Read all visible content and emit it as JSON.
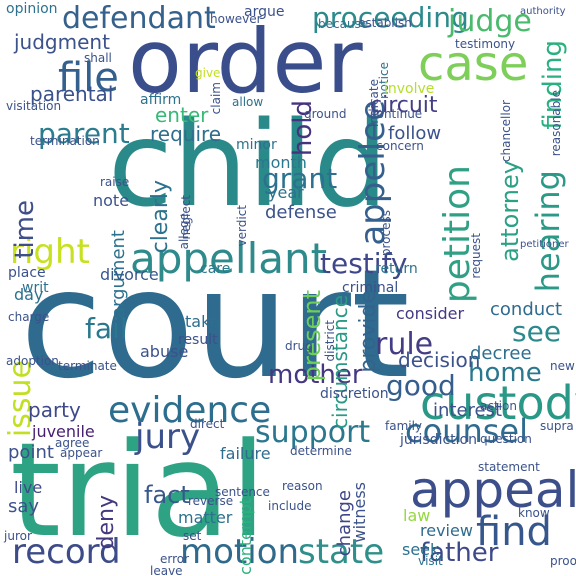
{
  "words": [
    {
      "text": "court",
      "color": "#2f6b8e",
      "orientation": "horizontal"
    },
    {
      "text": "child",
      "color": "#2a8a8a",
      "orientation": "horizontal"
    },
    {
      "text": "trial",
      "color": "#2ea384",
      "orientation": "horizontal"
    },
    {
      "text": "order",
      "color": "#3a4e8c",
      "orientation": "horizontal"
    },
    {
      "text": "appellant",
      "color": "#2f8a8c",
      "orientation": "horizontal"
    },
    {
      "text": "custody",
      "color": "#2a9886",
      "orientation": "horizontal"
    },
    {
      "text": "appeal",
      "color": "#3c4f8a",
      "orientation": "horizontal"
    },
    {
      "text": "evidence",
      "color": "#2d6e8e",
      "orientation": "horizontal"
    },
    {
      "text": "case",
      "color": "#7ecf5a",
      "orientation": "horizontal"
    },
    {
      "text": "motion",
      "color": "#2f6a8d",
      "orientation": "horizontal"
    },
    {
      "text": "state",
      "color": "#2f8f8b",
      "orientation": "horizontal"
    },
    {
      "text": "record",
      "color": "#3d4c88",
      "orientation": "horizontal"
    },
    {
      "text": "petition",
      "color": "#2fa084",
      "orientation": "vertical"
    },
    {
      "text": "file",
      "color": "#33608d",
      "orientation": "horizontal"
    },
    {
      "text": "right",
      "color": "#c7e020",
      "orientation": "horizontal"
    },
    {
      "text": "defendant",
      "color": "#35618d",
      "orientation": "horizontal"
    },
    {
      "text": "proceeding",
      "color": "#2c8a8c",
      "orientation": "horizontal"
    },
    {
      "text": "judge",
      "color": "#4aba6d",
      "orientation": "horizontal"
    },
    {
      "text": "attorney",
      "color": "#2ba085",
      "orientation": "vertical"
    },
    {
      "text": "hearing",
      "color": "#2a9988",
      "orientation": "vertical"
    },
    {
      "text": "testify",
      "color": "#3f478a",
      "orientation": "horizontal"
    },
    {
      "text": "appellee",
      "color": "#355f8d",
      "orientation": "vertical"
    },
    {
      "text": "counsel",
      "color": "#2e6b8e",
      "orientation": "horizontal"
    },
    {
      "text": "find",
      "color": "#36578c",
      "orientation": "horizontal"
    },
    {
      "text": "jury",
      "color": "#3b518b",
      "orientation": "horizontal"
    },
    {
      "text": "support",
      "color": "#2b778e",
      "orientation": "horizontal"
    },
    {
      "text": "mother",
      "color": "#453882",
      "orientation": "horizontal"
    },
    {
      "text": "father",
      "color": "#3e4989",
      "orientation": "horizontal"
    },
    {
      "text": "rule",
      "color": "#433d85",
      "orientation": "horizontal"
    },
    {
      "text": "good",
      "color": "#355e8d",
      "orientation": "horizontal"
    },
    {
      "text": "home",
      "color": "#2a788e",
      "orientation": "horizontal"
    },
    {
      "text": "see",
      "color": "#2c8a8c",
      "orientation": "horizontal"
    },
    {
      "text": "parent",
      "color": "#2b7c8e",
      "orientation": "horizontal"
    },
    {
      "text": "issue",
      "color": "#c2df23",
      "orientation": "vertical"
    },
    {
      "text": "time",
      "color": "#3d4e8a",
      "orientation": "vertical"
    },
    {
      "text": "circuit",
      "color": "#433e85",
      "orientation": "horizontal"
    },
    {
      "text": "judgment",
      "color": "#3b528b",
      "orientation": "horizontal"
    },
    {
      "text": "parental",
      "color": "#3b518b",
      "orientation": "horizontal"
    },
    {
      "text": "fact",
      "color": "#38588c",
      "orientation": "horizontal"
    },
    {
      "text": "fail",
      "color": "#2a788e",
      "orientation": "horizontal"
    },
    {
      "text": "hold",
      "color": "#46327e",
      "orientation": "vertical"
    },
    {
      "text": "grant",
      "color": "#2c718e",
      "orientation": "horizontal"
    },
    {
      "text": "provide",
      "color": "#33638d",
      "orientation": "vertical"
    },
    {
      "text": "party",
      "color": "#3e4989",
      "orientation": "horizontal"
    },
    {
      "text": "review",
      "color": "#2f6b8e",
      "orientation": "horizontal"
    },
    {
      "text": "finding",
      "color": "#2ab07f",
      "orientation": "vertical"
    },
    {
      "text": "decision",
      "color": "#3b528b",
      "orientation": "horizontal"
    },
    {
      "text": "present",
      "color": "#6ece58",
      "orientation": "vertical"
    },
    {
      "text": "require",
      "color": "#2e6e8e",
      "orientation": "horizontal"
    },
    {
      "text": "follow",
      "color": "#3b528b",
      "orientation": "horizontal"
    },
    {
      "text": "circumstance",
      "color": "#2a9a86",
      "orientation": "vertical"
    },
    {
      "text": "deny",
      "color": "#453781",
      "orientation": "vertical"
    },
    {
      "text": "clearly",
      "color": "#2c728e",
      "orientation": "vertical"
    },
    {
      "text": "enter",
      "color": "#38b977",
      "orientation": "horizontal"
    },
    {
      "text": "interest",
      "color": "#3b528b",
      "orientation": "horizontal"
    },
    {
      "text": "decree",
      "color": "#2e6e8e",
      "orientation": "horizontal"
    },
    {
      "text": "conduct",
      "color": "#2f6b8e",
      "orientation": "horizontal"
    },
    {
      "text": "consider",
      "color": "#443983",
      "orientation": "horizontal"
    },
    {
      "text": "law",
      "color": "#95d840",
      "orientation": "horizontal"
    },
    {
      "text": "juvenile",
      "color": "#481f70",
      "orientation": "horizontal"
    },
    {
      "text": "argument",
      "color": "#2c728e",
      "orientation": "vertical"
    },
    {
      "text": "defense",
      "color": "#3b528b",
      "orientation": "horizontal"
    },
    {
      "text": "matter",
      "color": "#2d708e",
      "orientation": "horizontal"
    },
    {
      "text": "contempt",
      "color": "#2db27d",
      "orientation": "vertical"
    },
    {
      "text": "month",
      "color": "#2a788e",
      "orientation": "horizontal"
    },
    {
      "text": "year",
      "color": "#2c728e",
      "orientation": "horizontal"
    },
    {
      "text": "note",
      "color": "#3b528b",
      "orientation": "horizontal"
    },
    {
      "text": "abuse",
      "color": "#3b528b",
      "orientation": "horizontal"
    },
    {
      "text": "take",
      "color": "#2e6e8e",
      "orientation": "horizontal"
    },
    {
      "text": "return",
      "color": "#2c738e",
      "orientation": "horizontal"
    },
    {
      "text": "divorce",
      "color": "#38588c",
      "orientation": "horizontal"
    },
    {
      "text": "day",
      "color": "#2c728e",
      "orientation": "horizontal"
    },
    {
      "text": "say",
      "color": "#3b528b",
      "orientation": "horizontal"
    },
    {
      "text": "live",
      "color": "#3e4a89",
      "orientation": "horizontal"
    },
    {
      "text": "point",
      "color": "#3b528b",
      "orientation": "horizontal"
    },
    {
      "text": "change",
      "color": "#3f4788",
      "orientation": "vertical"
    },
    {
      "text": "witness",
      "color": "#3b528b",
      "orientation": "vertical"
    },
    {
      "text": "failure",
      "color": "#2e6d8e",
      "orientation": "horizontal"
    },
    {
      "text": "place",
      "color": "#3b528b",
      "orientation": "horizontal"
    },
    {
      "text": "care",
      "color": "#2a788e",
      "orientation": "horizontal"
    },
    {
      "text": "writ",
      "color": "#2c728e",
      "orientation": "horizontal"
    },
    {
      "text": "visit",
      "color": "#2c728e",
      "orientation": "horizontal"
    },
    {
      "text": "seek",
      "color": "#2c728e",
      "orientation": "horizontal"
    },
    {
      "text": "termination",
      "color": "#3b528b",
      "orientation": "horizontal"
    },
    {
      "text": "visitation",
      "color": "#3b528b",
      "orientation": "horizontal"
    },
    {
      "text": "give",
      "color": "#c2df23",
      "orientation": "horizontal"
    },
    {
      "text": "affirm",
      "color": "#2c728e",
      "orientation": "horizontal"
    },
    {
      "text": "minor",
      "color": "#2c728e",
      "orientation": "horizontal"
    },
    {
      "text": "shall",
      "color": "#3b528b",
      "orientation": "horizontal"
    },
    {
      "text": "argue",
      "color": "#3b528b",
      "orientation": "horizontal"
    },
    {
      "text": "allow",
      "color": "#2c728e",
      "orientation": "horizontal"
    },
    {
      "text": "ground",
      "color": "#3b528b",
      "orientation": "horizontal"
    },
    {
      "text": "notice",
      "color": "#2c728e",
      "orientation": "vertical"
    },
    {
      "text": "involve",
      "color": "#b5de2b",
      "orientation": "horizontal"
    },
    {
      "text": "continue",
      "color": "#3b528b",
      "orientation": "horizontal"
    },
    {
      "text": "concern",
      "color": "#3b528b",
      "orientation": "horizontal"
    },
    {
      "text": "testimony",
      "color": "#3b528b",
      "orientation": "horizontal"
    },
    {
      "text": "establish",
      "color": "#3b528b",
      "orientation": "horizontal"
    },
    {
      "text": "because",
      "color": "#2c728e",
      "orientation": "horizontal"
    },
    {
      "text": "however",
      "color": "#3b528b",
      "orientation": "horizontal"
    },
    {
      "text": "opinion",
      "color": "#2c728e",
      "orientation": "horizontal"
    },
    {
      "text": "indicate",
      "color": "#3b528b",
      "orientation": "vertical"
    },
    {
      "text": "claim",
      "color": "#3b528b",
      "orientation": "vertical"
    },
    {
      "text": "raise",
      "color": "#3b528b",
      "orientation": "horizontal"
    },
    {
      "text": "neglect",
      "color": "#3b528b",
      "orientation": "vertical"
    },
    {
      "text": "allege",
      "color": "#3b528b",
      "orientation": "vertical"
    },
    {
      "text": "verdict",
      "color": "#3b528b",
      "orientation": "vertical"
    },
    {
      "text": "request",
      "color": "#3b528b",
      "orientation": "vertical"
    },
    {
      "text": "criminal",
      "color": "#3b528b",
      "orientation": "horizontal"
    },
    {
      "text": "charge",
      "color": "#3b528b",
      "orientation": "horizontal"
    },
    {
      "text": "adoption",
      "color": "#3b528b",
      "orientation": "horizontal"
    },
    {
      "text": "terminate",
      "color": "#3b528b",
      "orientation": "horizontal"
    },
    {
      "text": "result",
      "color": "#3b528b",
      "orientation": "horizontal"
    },
    {
      "text": "drug",
      "color": "#3b528b",
      "orientation": "horizontal"
    },
    {
      "text": "district",
      "color": "#3b528b",
      "orientation": "vertical"
    },
    {
      "text": "discretion",
      "color": "#3b528b",
      "orientation": "horizontal"
    },
    {
      "text": "family",
      "color": "#3b528b",
      "orientation": "horizontal"
    },
    {
      "text": "action",
      "color": "#3b528b",
      "orientation": "horizontal"
    },
    {
      "text": "new",
      "color": "#3b528b",
      "orientation": "horizontal"
    },
    {
      "text": "jurisdiction",
      "color": "#3b528b",
      "orientation": "horizontal"
    },
    {
      "text": "question",
      "color": "#3b528b",
      "orientation": "horizontal"
    },
    {
      "text": "supra",
      "color": "#3b528b",
      "orientation": "horizontal"
    },
    {
      "text": "determine",
      "color": "#3b528b",
      "orientation": "horizontal"
    },
    {
      "text": "reason",
      "color": "#3b528b",
      "orientation": "horizontal"
    },
    {
      "text": "sentence",
      "color": "#3b528b",
      "orientation": "horizontal"
    },
    {
      "text": "include",
      "color": "#3b528b",
      "orientation": "horizontal"
    },
    {
      "text": "reverse",
      "color": "#3b528b",
      "orientation": "horizontal"
    },
    {
      "text": "set",
      "color": "#3b528b",
      "orientation": "horizontal"
    },
    {
      "text": "error",
      "color": "#3b528b",
      "orientation": "horizontal"
    },
    {
      "text": "leave",
      "color": "#3b528b",
      "orientation": "horizontal"
    },
    {
      "text": "juror",
      "color": "#3b528b",
      "orientation": "horizontal"
    },
    {
      "text": "agree",
      "color": "#3b528b",
      "orientation": "horizontal"
    },
    {
      "text": "appear",
      "color": "#3b528b",
      "orientation": "horizontal"
    },
    {
      "text": "direct",
      "color": "#3b528b",
      "orientation": "horizontal"
    },
    {
      "text": "know",
      "color": "#3b528b",
      "orientation": "horizontal"
    },
    {
      "text": "proof",
      "color": "#3b528b",
      "orientation": "horizontal"
    },
    {
      "text": "statement",
      "color": "#3b528b",
      "orientation": "horizontal"
    },
    {
      "text": "process",
      "color": "#3b528b",
      "orientation": "vertical"
    },
    {
      "text": "chancellor",
      "color": "#3b528b",
      "orientation": "vertical"
    },
    {
      "text": "reasonable",
      "color": "#3b528b",
      "orientation": "vertical"
    },
    {
      "text": "petitioner",
      "color": "#3b528b",
      "orientation": "horizontal"
    },
    {
      "text": "authority",
      "color": "#3b528b",
      "orientation": "horizontal"
    }
  ]
}
